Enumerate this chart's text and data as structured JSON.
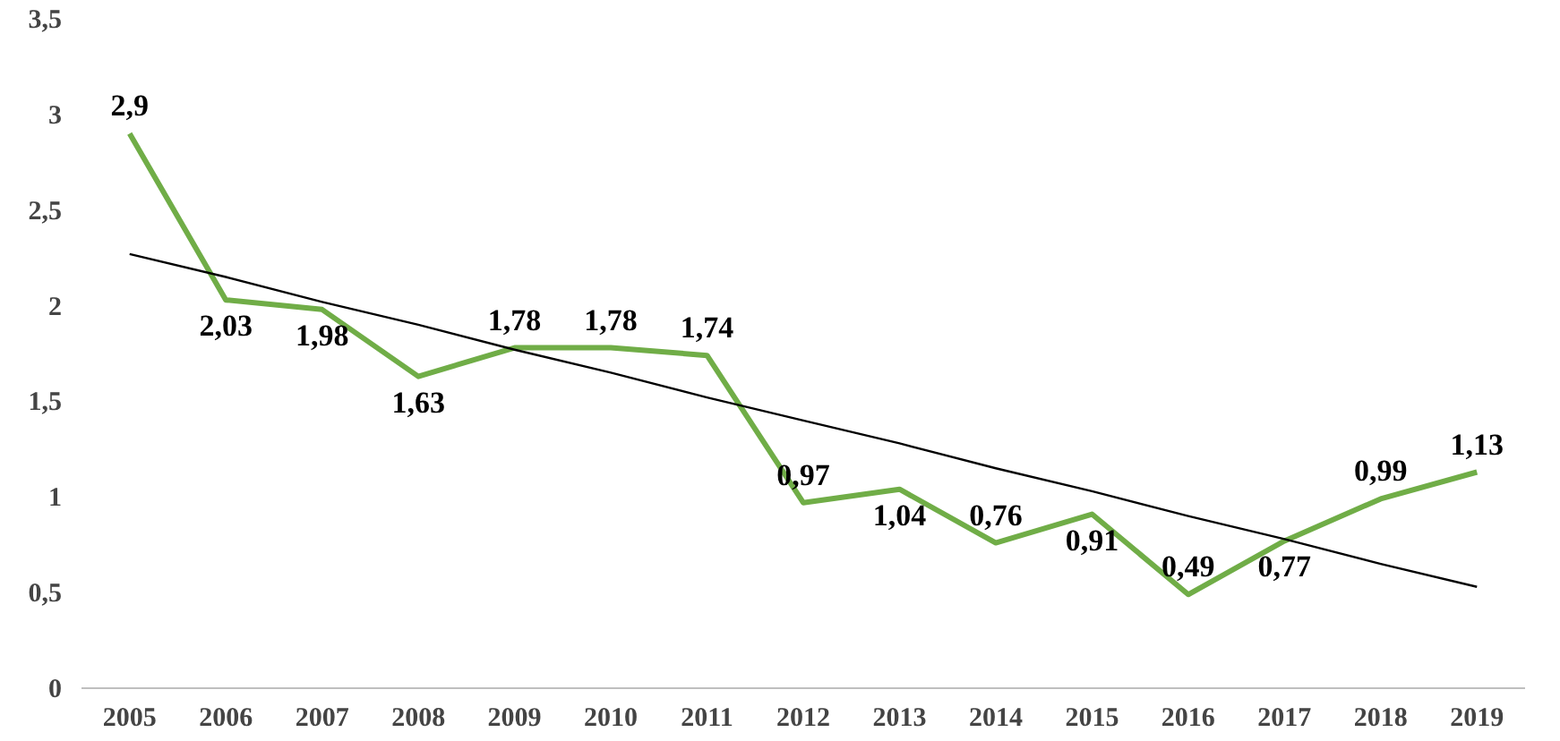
{
  "chart_data": {
    "type": "line",
    "categories": [
      "2005",
      "2006",
      "2007",
      "2008",
      "2009",
      "2010",
      "2011",
      "2012",
      "2013",
      "2014",
      "2015",
      "2016",
      "2017",
      "2018",
      "2019"
    ],
    "series": [
      {
        "color": "#70ad47",
        "values": [
          2.9,
          2.03,
          1.98,
          1.63,
          1.78,
          1.78,
          1.74,
          0.97,
          1.04,
          0.76,
          0.91,
          0.49,
          0.77,
          0.99,
          1.13
        ],
        "value_labels": [
          "2,9",
          "2,03",
          "1,98",
          "1,63",
          "1,78",
          "1,78",
          "1,74",
          "0,97",
          "1,04",
          "0,76",
          "0,91",
          "0,49",
          "0,77",
          "0,99",
          "1,13"
        ]
      },
      {
        "type": "line",
        "color": "#000000",
        "values": [
          2.27,
          2.15,
          2.02,
          1.9,
          1.77,
          1.65,
          1.52,
          1.4,
          1.28,
          1.15,
          1.03,
          0.9,
          0.78,
          0.65,
          0.53
        ]
      }
    ],
    "ylim": [
      0,
      3.5
    ],
    "yticks": [
      0,
      {
        "value": 0.5,
        "label": "0,5"
      },
      1,
      {
        "value": 1.5,
        "label": "1,5"
      },
      2,
      {
        "value": 2.5,
        "label": "2,5"
      },
      3,
      {
        "value": 3.5,
        "label": "3,5"
      }
    ],
    "grid": false
  }
}
